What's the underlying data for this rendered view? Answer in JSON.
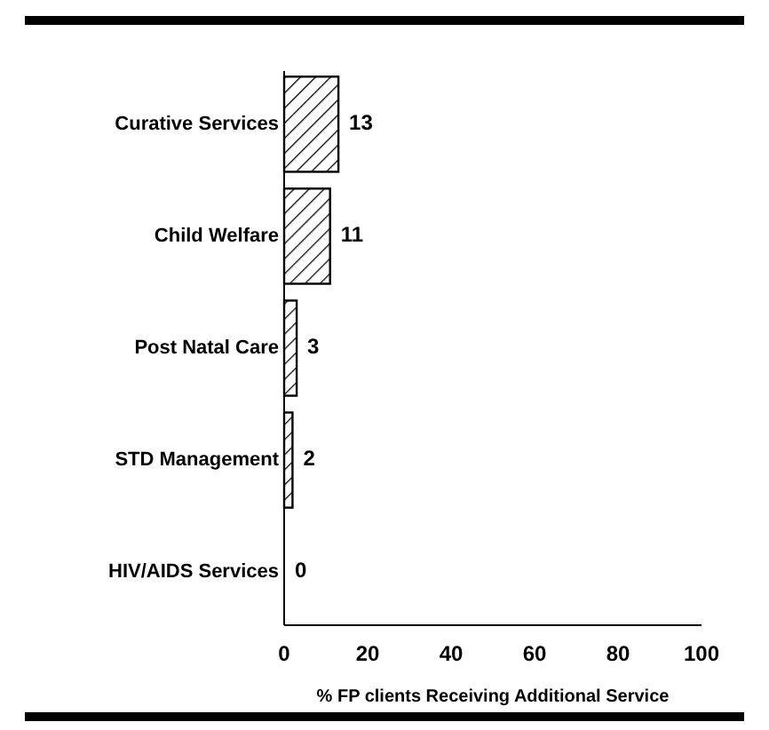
{
  "chart_data": {
    "type": "bar",
    "orientation": "horizontal",
    "xlabel": "% FP clients Receiving Additional Service",
    "categories": [
      "Curative Services",
      "Child Welfare",
      "Post Natal Care",
      "STD Management",
      "HIV/AIDS Services"
    ],
    "values": [
      13,
      11,
      3,
      2,
      0
    ],
    "color": "#000000",
    "xlim": [
      0,
      100
    ],
    "xticks": [
      0,
      20,
      40,
      60,
      80,
      100
    ],
    "data_labels": true,
    "grid": false
  }
}
